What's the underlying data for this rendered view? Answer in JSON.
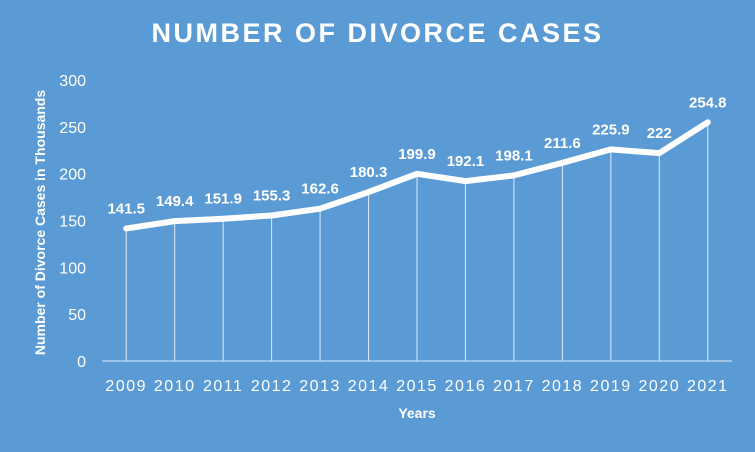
{
  "chart_data": {
    "type": "line",
    "title": "NUMBER OF DIVORCE CASES",
    "xlabel": "Years",
    "ylabel": "Number of Divorce Cases in Thousands",
    "categories": [
      "2009",
      "2010",
      "2011",
      "2012",
      "2013",
      "2014",
      "2015",
      "2016",
      "2017",
      "2018",
      "2019",
      "2020",
      "2021"
    ],
    "series": [
      {
        "values": [
          141.5,
          149.4,
          151.9,
          155.3,
          162.6,
          180.3,
          199.9,
          192.1,
          198.1,
          211.6,
          225.9,
          222,
          254.8
        ]
      }
    ],
    "data_labels": [
      "141.5",
      "149.4",
      "151.9",
      "155.3",
      "162.6",
      "180.3",
      "199.9",
      "192.1",
      "198.1",
      "211.6",
      "225.9",
      "222",
      "254.8"
    ],
    "yticks": [
      "0",
      "50",
      "100",
      "150",
      "200",
      "250",
      "300"
    ],
    "ylim": [
      0,
      300
    ],
    "grid": "vertical drop lines",
    "legend": "none",
    "colors": {
      "background": "#5b9bd5",
      "line": "#ffffff",
      "text": "#ffffff"
    }
  }
}
